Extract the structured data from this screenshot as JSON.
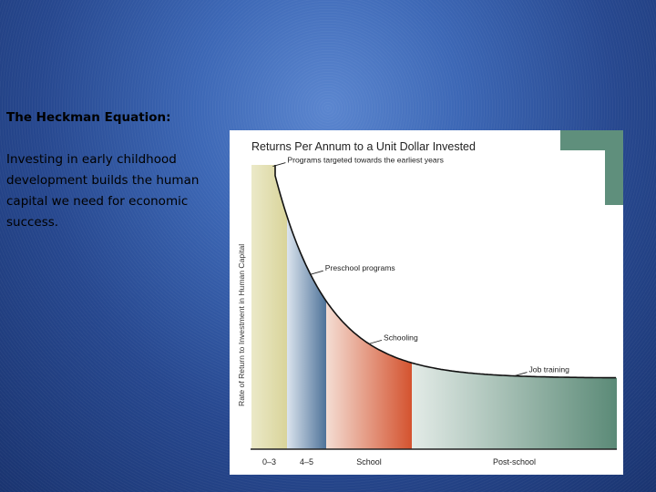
{
  "slide": {
    "heading": "The Heckman Equation:",
    "body": "Investing in early childhood development builds the human capital we need for economic success."
  },
  "chart_data": {
    "type": "area",
    "title": "Returns Per Annum to a Unit Dollar Invested",
    "xlabel": "",
    "ylabel": "Rate of Return to Investment in Human Capital",
    "categories": [
      "0–3",
      "4–5",
      "School",
      "Post-school"
    ],
    "segments": [
      {
        "label": "0–3",
        "color_top": "#ebe9c8",
        "color_bottom": "#d9d49a"
      },
      {
        "label": "4–5",
        "color_top": "#dbe4ee",
        "color_bottom": "#4f7399"
      },
      {
        "label": "School",
        "color_top": "#f4ddd3",
        "color_bottom": "#d4532f"
      },
      {
        "label": "Post-school",
        "color_top": "#e3ebe7",
        "color_bottom": "#5b8a77"
      }
    ],
    "annotations": [
      {
        "text": "Programs targeted towards the earliest years",
        "at": 0.6
      },
      {
        "text": "Preschool programs",
        "at": 1.6
      },
      {
        "text": "Schooling",
        "at": 2.5
      },
      {
        "text": "Job training",
        "at": 3.5
      }
    ],
    "grid": false,
    "accent_color": "#5f8f7c"
  }
}
